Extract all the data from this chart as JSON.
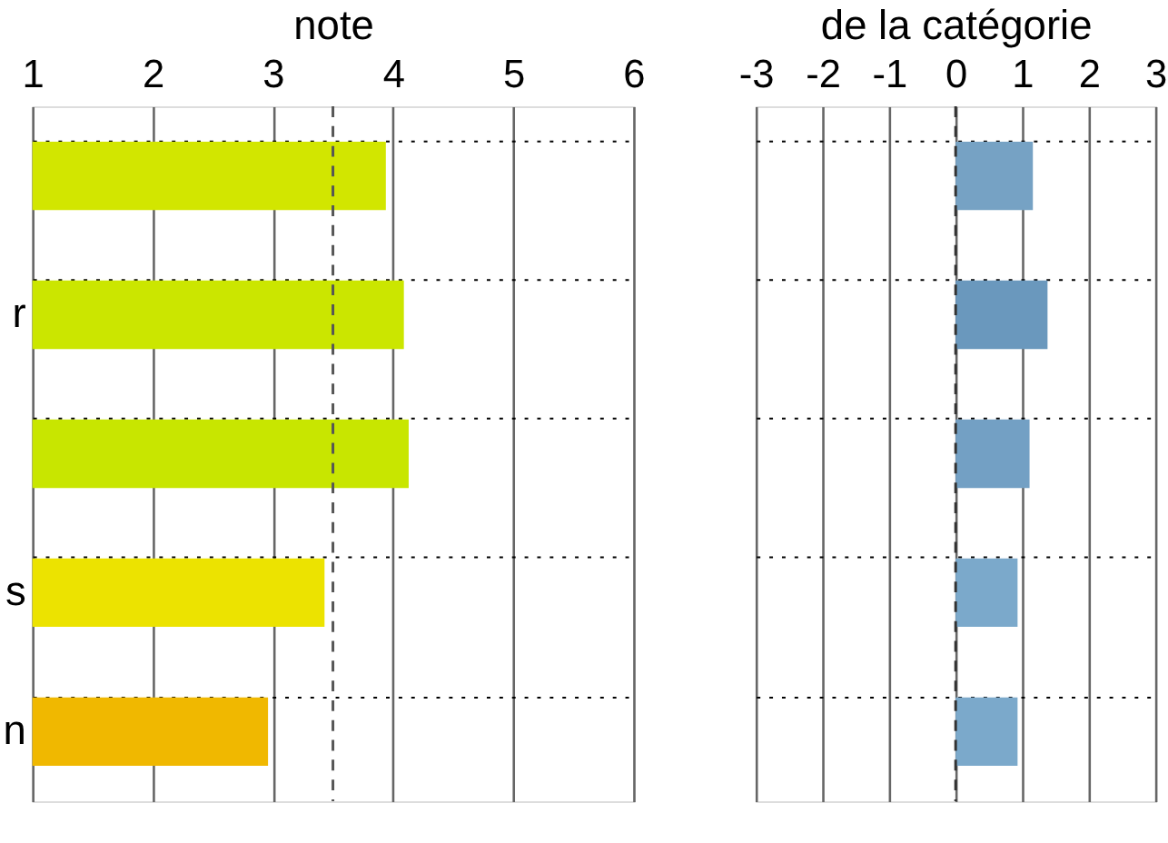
{
  "chart_data": [
    {
      "type": "bar",
      "orientation": "horizontal",
      "xlabel": "note",
      "categories": [
        null,
        "r",
        null,
        "s",
        "n"
      ],
      "values": [
        3.94,
        4.09,
        4.13,
        3.43,
        2.96
      ],
      "colors": [
        "#d2e600",
        "#cbe600",
        "#c8e600",
        "#ece300",
        "#f0b800"
      ],
      "xlim": [
        1,
        6
      ],
      "xticks": [
        1,
        2,
        3,
        4,
        5,
        6
      ],
      "grid": true,
      "ref_lines": [
        {
          "axis": "x",
          "value": 3.5,
          "line_style": "dashed",
          "color": "#555555"
        }
      ]
    },
    {
      "type": "bar",
      "orientation": "horizontal",
      "xlabel": "de la catégorie",
      "categories": [
        null,
        null,
        null,
        null,
        null
      ],
      "values": [
        1.16,
        1.38,
        1.11,
        0.93,
        0.93
      ],
      "colors": [
        "#76a2c4",
        "#6a98bd",
        "#73a0c4",
        "#7ba9cb",
        "#7ba9cb"
      ],
      "xlim": [
        -3,
        3
      ],
      "xticks": [
        -3,
        -2,
        -1,
        0,
        1,
        2,
        3
      ],
      "grid": true,
      "tick_labels": "x",
      "ref_lines": [
        {
          "axis": "x",
          "value": 0,
          "line_style": "dashed",
          "color": "#333333"
        }
      ]
    }
  ]
}
